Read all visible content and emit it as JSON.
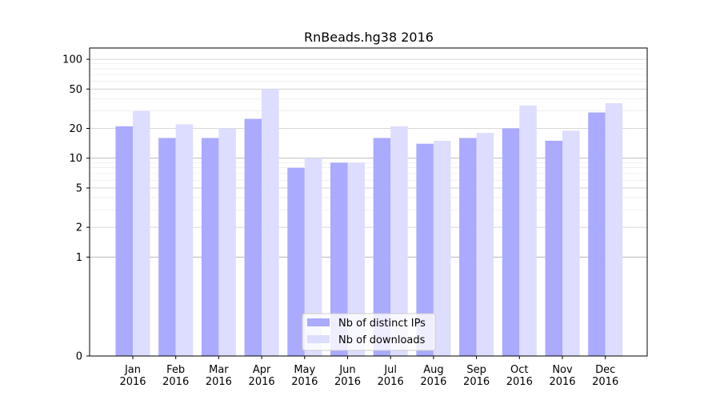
{
  "chart_data": {
    "type": "bar",
    "title": "RnBeads.hg38 2016",
    "xlabel": "",
    "ylabel": "",
    "yscale": "symlog",
    "ylim": [
      0,
      130
    ],
    "yticks": [
      0,
      1,
      2,
      5,
      10,
      20,
      50,
      100
    ],
    "ytick_labels": [
      "0",
      "1",
      "2",
      "5",
      "10",
      "20",
      "50",
      "100"
    ],
    "categories": [
      "Jan\n2016",
      "Feb\n2016",
      "Mar\n2016",
      "Apr\n2016",
      "May\n2016",
      "Jun\n2016",
      "Jul\n2016",
      "Aug\n2016",
      "Sep\n2016",
      "Oct\n2016",
      "Nov\n2016",
      "Dec\n2016"
    ],
    "series": [
      {
        "name": "Nb of distinct IPs",
        "color": "#aaaaff",
        "values": [
          21,
          16,
          16,
          25,
          8,
          9,
          16,
          14,
          16,
          20,
          15,
          29
        ]
      },
      {
        "name": "Nb of downloads",
        "color": "#ddddff",
        "values": [
          30,
          22,
          20,
          50,
          10,
          9,
          21,
          15,
          18,
          34,
          19,
          36
        ]
      }
    ],
    "grid": true,
    "legend_position": "bottom-center"
  }
}
